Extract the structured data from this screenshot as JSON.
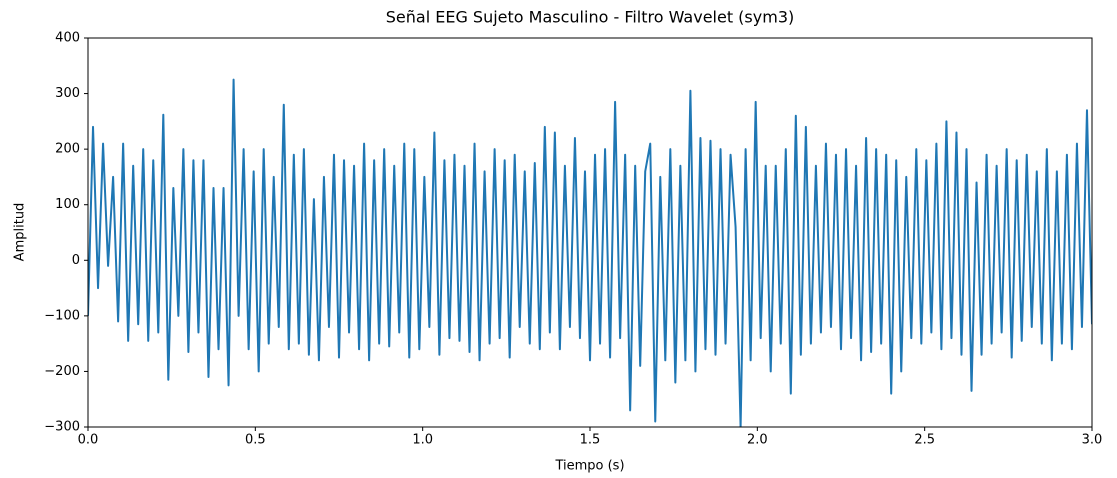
{
  "chart_data": {
    "type": "line",
    "title": "Señal EEG Sujeto Masculino - Filtro Wavelet (sym3)",
    "xlabel": "Tiempo (s)",
    "ylabel": "Amplitud",
    "color": "#1f77b4",
    "xlim": [
      0,
      3
    ],
    "ylim": [
      -300,
      400
    ],
    "xticks": [
      {
        "value": 0,
        "label": "0.0"
      },
      {
        "value": 0.5,
        "label": "0.5"
      },
      {
        "value": 1,
        "label": "1.0"
      },
      {
        "value": 1.5,
        "label": "1.5"
      },
      {
        "value": 2,
        "label": "2.0"
      },
      {
        "value": 2.5,
        "label": "2.5"
      },
      {
        "value": 3,
        "label": "3.0"
      }
    ],
    "yticks": [
      {
        "value": -300,
        "label": "−300"
      },
      {
        "value": -200,
        "label": "−200"
      },
      {
        "value": -100,
        "label": "−100"
      },
      0,
      100,
      200,
      300,
      400
    ],
    "x": [
      0,
      0.015,
      0.03,
      0.045,
      0.06,
      0.075,
      0.09,
      0.105,
      0.12,
      0.135,
      0.15,
      0.165,
      0.18,
      0.195,
      0.21,
      0.225,
      0.24,
      0.255,
      0.27,
      0.285,
      0.3,
      0.315,
      0.33,
      0.345,
      0.36,
      0.375,
      0.39,
      0.405,
      0.42,
      0.435,
      0.45,
      0.465,
      0.48,
      0.495,
      0.51,
      0.525,
      0.54,
      0.555,
      0.57,
      0.585,
      0.6,
      0.615,
      0.63,
      0.645,
      0.66,
      0.675,
      0.69,
      0.705,
      0.72,
      0.735,
      0.75,
      0.765,
      0.78,
      0.795,
      0.81,
      0.825,
      0.84,
      0.855,
      0.87,
      0.885,
      0.9,
      0.915,
      0.93,
      0.945,
      0.96,
      0.975,
      0.99,
      1.005,
      1.02,
      1.035,
      1.05,
      1.065,
      1.08,
      1.095,
      1.11,
      1.125,
      1.14,
      1.155,
      1.17,
      1.185,
      1.2,
      1.215,
      1.23,
      1.245,
      1.26,
      1.275,
      1.29,
      1.305,
      1.32,
      1.335,
      1.35,
      1.365,
      1.38,
      1.395,
      1.41,
      1.425,
      1.44,
      1.455,
      1.47,
      1.485,
      1.5,
      1.515,
      1.53,
      1.545,
      1.56,
      1.575,
      1.59,
      1.605,
      1.62,
      1.635,
      1.65,
      1.665,
      1.68,
      1.695,
      1.71,
      1.725,
      1.74,
      1.755,
      1.77,
      1.785,
      1.8,
      1.815,
      1.83,
      1.845,
      1.86,
      1.875,
      1.89,
      1.905,
      1.92,
      1.935,
      1.95,
      1.965,
      1.98,
      1.995,
      2.01,
      2.025,
      2.04,
      2.055,
      2.07,
      2.085,
      2.1,
      2.115,
      2.13,
      2.145,
      2.16,
      2.175,
      2.19,
      2.205,
      2.22,
      2.235,
      2.25,
      2.265,
      2.28,
      2.295,
      2.31,
      2.325,
      2.34,
      2.355,
      2.37,
      2.385,
      2.4,
      2.415,
      2.43,
      2.445,
      2.46,
      2.475,
      2.49,
      2.505,
      2.52,
      2.535,
      2.55,
      2.565,
      2.58,
      2.595,
      2.61,
      2.625,
      2.64,
      2.655,
      2.67,
      2.685,
      2.7,
      2.715,
      2.73,
      2.745,
      2.76,
      2.775,
      2.79,
      2.805,
      2.82,
      2.835,
      2.85,
      2.865,
      2.88,
      2.895,
      2.91,
      2.925,
      2.94,
      2.955,
      2.97,
      2.985,
      3
    ],
    "values": [
      -100,
      240,
      -50,
      210,
      -10,
      150,
      -110,
      210,
      -145,
      170,
      -115,
      200,
      -145,
      180,
      -130,
      262,
      -215,
      130,
      -100,
      200,
      -165,
      180,
      -130,
      180,
      -210,
      130,
      -160,
      130,
      -225,
      325,
      -100,
      200,
      -160,
      160,
      -200,
      200,
      -150,
      150,
      -120,
      280,
      -160,
      190,
      -150,
      200,
      -170,
      110,
      -180,
      150,
      -120,
      190,
      -175,
      180,
      -130,
      170,
      -160,
      210,
      -180,
      180,
      -150,
      200,
      -155,
      170,
      -130,
      210,
      -175,
      200,
      -160,
      150,
      -120,
      230,
      -170,
      180,
      -140,
      190,
      -145,
      170,
      -165,
      210,
      -180,
      160,
      -150,
      200,
      -140,
      180,
      -175,
      190,
      -120,
      160,
      -150,
      175,
      -160,
      240,
      -130,
      230,
      -160,
      170,
      -120,
      220,
      -140,
      160,
      -180,
      190,
      -150,
      200,
      -175,
      285,
      -140,
      190,
      -270,
      170,
      -190,
      160,
      210,
      -290,
      150,
      -180,
      200,
      -220,
      170,
      -180,
      305,
      -200,
      220,
      -160,
      215,
      -170,
      200,
      -150,
      190,
      60,
      -300,
      200,
      -180,
      285,
      -140,
      170,
      -200,
      170,
      -150,
      200,
      -240,
      260,
      -170,
      240,
      -150,
      170,
      -130,
      210,
      -120,
      190,
      -160,
      200,
      -140,
      170,
      -180,
      220,
      -165,
      200,
      -150,
      190,
      -240,
      180,
      -200,
      150,
      -140,
      200,
      -150,
      180,
      -130,
      210,
      -160,
      250,
      -140,
      230,
      -170,
      200,
      -235,
      140,
      -170,
      190,
      -150,
      170,
      -130,
      200,
      -175,
      180,
      -145,
      190,
      -120,
      160,
      -150,
      200,
      -180,
      160,
      -150,
      190,
      -160,
      210,
      -120,
      270,
      -115
    ]
  }
}
